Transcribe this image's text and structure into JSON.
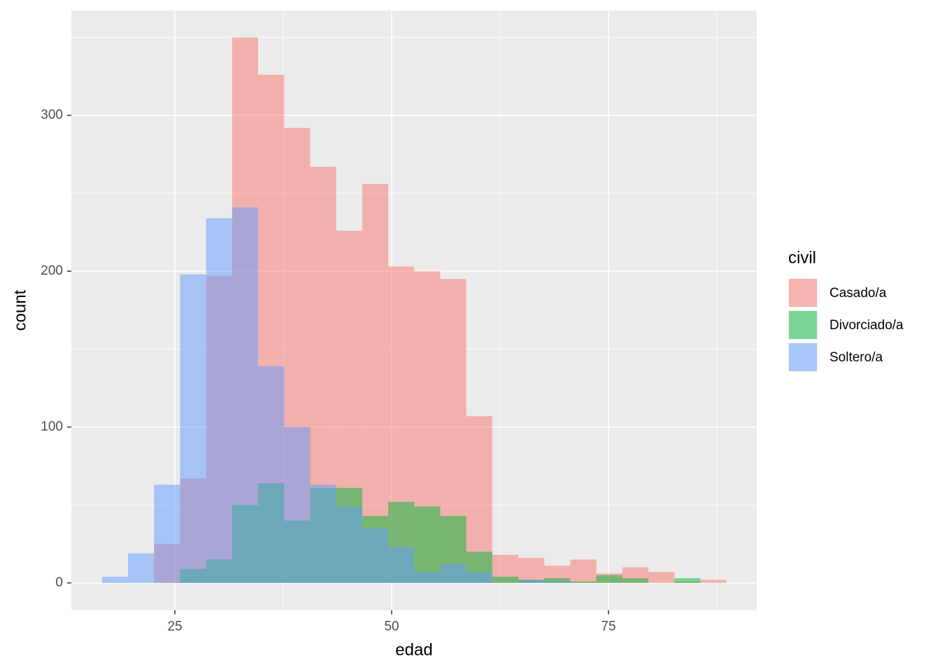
{
  "chart_data": {
    "type": "histogram",
    "x_label": "edad",
    "y_label": "count",
    "legend_title": "civil",
    "bins": [
      16.6,
      19.6,
      22.6,
      25.6,
      28.6,
      31.6,
      34.6,
      37.6,
      40.6,
      43.6,
      46.6,
      49.6,
      52.6,
      55.6,
      58.6,
      61.6,
      64.6,
      67.6,
      70.6,
      73.6,
      76.6,
      79.6,
      82.6,
      85.6,
      88.6
    ],
    "series": [
      {
        "name": "Casado/a",
        "color": "#F8766D",
        "values": [
          0,
          0,
          25,
          67,
          197,
          350,
          326,
          292,
          267,
          226,
          256,
          203,
          200,
          195,
          107,
          18,
          16,
          11,
          15,
          6,
          10,
          7,
          1,
          2
        ]
      },
      {
        "name": "Divorciado/a",
        "color": "#00BA38",
        "values": [
          0,
          0,
          0,
          9,
          15,
          50,
          64,
          40,
          61,
          61,
          43,
          52,
          49,
          43,
          20,
          4,
          2,
          3,
          1,
          5,
          3,
          0,
          3,
          0
        ]
      },
      {
        "name": "Soltero/a",
        "color": "#619CFF",
        "values": [
          4,
          19,
          63,
          198,
          234,
          241,
          139,
          100,
          63,
          49,
          35,
          23,
          7,
          12,
          7,
          0,
          2,
          1,
          0,
          0,
          0,
          0,
          0,
          0
        ]
      }
    ],
    "opacity": 0.5,
    "xlim": [
      13.06,
      92.1
    ],
    "xticks": [
      25,
      50,
      75
    ],
    "ylim": [
      -17.5,
      367.3
    ],
    "yticks": [
      0,
      100,
      200,
      300
    ],
    "grid": true,
    "legend": "right"
  }
}
